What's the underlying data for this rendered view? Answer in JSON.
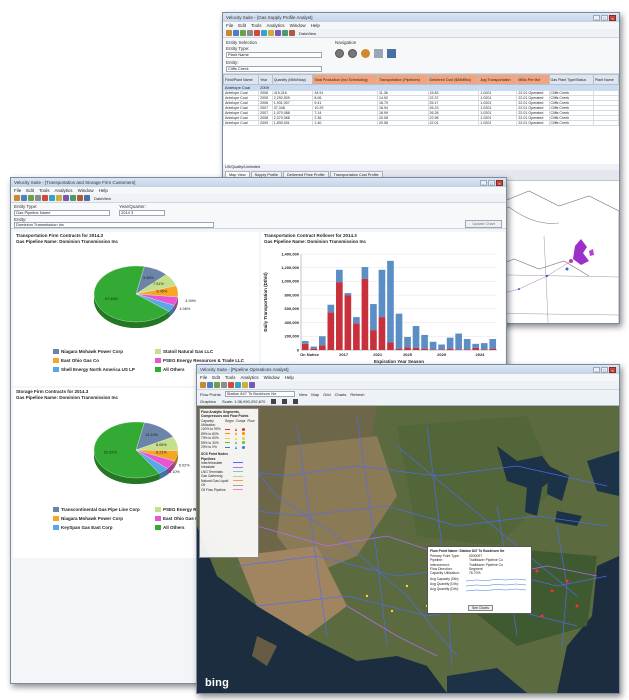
{
  "supply_window": {
    "title": "Velocity Suite - [Gas Supply Profile Analyst]",
    "menu": [
      "File",
      "Edit",
      "Tools",
      "Analytics",
      "Window",
      "Help"
    ],
    "toolbar_dataview": "DataView",
    "entity_selection_label": "Entity Selection",
    "entity_type_label": "Entity Type:",
    "entity_type_value": "Plant Name",
    "entity_label": "Entity:",
    "entity_value": "Cliffs Creek",
    "navigation_label": "Navigation",
    "table": {
      "columns": [
        "Field/Plant Name",
        "Year",
        "Quantity (MMcf/day)",
        "Total Production (incl Scheduling)",
        "Transportation (Pipelines)",
        "Delivered Cost ($/MMBtu)",
        "Avg Transportation",
        "MBtu Per Mcf",
        "Gas Plant Type/Status",
        "Plant Name"
      ],
      "highlight_columns": [
        3,
        4,
        5,
        6,
        7
      ],
      "rows": [
        [
          "Antelope Coal",
          "2009",
          "",
          "",
          "",
          "",
          "",
          "",
          "",
          ""
        ],
        [
          "Antelope Coal",
          "2006",
          "415,316",
          "34.91",
          "11.36",
          "15.83",
          "1.0201",
          "22.01 Operated",
          "Cliffs Creek",
          ""
        ],
        [
          "Antelope Coal",
          "2005",
          "2,292,909",
          "8.06",
          "14.92",
          "22.37",
          "1.0201",
          "22.01 Operated",
          "Cliffs Creek",
          ""
        ],
        [
          "Antelope Coal",
          "2006",
          "1,931,007",
          "9.41",
          "16.70",
          "25.17",
          "1.0201",
          "22.01 Operated",
          "Cliffs Creek",
          ""
        ],
        [
          "Antelope Coal",
          "2007",
          "37,348",
          "10.29",
          "16.94",
          "26.23",
          "1.0201",
          "22.01 Operated",
          "Cliffs Creek",
          ""
        ],
        [
          "Antelope Coal",
          "2007",
          "1,070,088",
          "7.14",
          "18.99",
          "26.28",
          "1.0201",
          "22.01 Operated",
          "Cliffs Creek",
          ""
        ],
        [
          "Antelope Coal",
          "2008",
          "2,370,068",
          "2.36",
          "20.08",
          "22.98",
          "1.0201",
          "22.01 Operated",
          "Cliffs Creek",
          ""
        ],
        [
          "Antelope Coal",
          "2009",
          "1,830,001",
          "1.40",
          "20.58",
          "22.01",
          "1.0201",
          "22.01 Operated",
          "Cliffs Creek",
          ""
        ]
      ]
    },
    "status_row": "US/Quality/Unlimited",
    "tabs": [
      "Map View",
      "Supply Profile",
      "Delivered Price Profile",
      "Transportation Cost Profile"
    ],
    "layers": {
      "tabs": [
        "Legend",
        "Layers"
      ],
      "items": [
        "Utility Clusters",
        "Supplying Mines"
      ],
      "subtitle": "Quantity (MMcf/day)",
      "plant_label": "CONSUMPTION POINT"
    }
  },
  "transport_window": {
    "title": "Velocity Suite - [Transportation and Storage Firm Customers]",
    "menu": [
      "File",
      "Edit",
      "Tools",
      "Analytics",
      "Window",
      "Help"
    ],
    "toolbar_dataview": "DataView",
    "entity_type_label": "Entity Type:",
    "entity_type_value": "Gas Pipeline Name",
    "year_quarter_label": "Year/Quarter:",
    "year_quarter_value": "2014 3",
    "entity_label": "Entity:",
    "entity_value": "Dominion Transmission Inc",
    "update_button": "Update Chart",
    "pie1": {
      "title1": "Transportation Firm Contracts for 2014.3",
      "title2": "Gas Pipeline Name: Dominion Transmission Inc",
      "slices": [
        {
          "label": "Niagara Mohawk Power Corp",
          "value": 9.58,
          "display": "9.58%",
          "color": "#6b84a8"
        },
        {
          "label": "Statoil Natural Gas LLC",
          "value": 7.51,
          "display": "7.51%",
          "color": "#c6df8c"
        },
        {
          "label": "East Ohio Gas Co",
          "value": 6.45,
          "display": "6.45%",
          "color": "#f5a623"
        },
        {
          "label": "PSEG Energy Resources & Trade LLC",
          "value": 4.94,
          "display": "4.94%",
          "color": "#e855d0"
        },
        {
          "label": "Shell Energy North America US LP",
          "value": 4.06,
          "display": "4.06%",
          "color": "#5aa7e8"
        },
        {
          "label": "All Others",
          "value": 67.46,
          "display": "67.46%",
          "color": "#33aa33"
        }
      ]
    },
    "pie2": {
      "title1": "Storage Firm Contracts for 2014.3",
      "title2": "Gas Pipeline Name: Dominion Transmission Inc",
      "slices": [
        {
          "label": "Transcontinental Gas Pipe Line Corp",
          "value": 14.1,
          "display": "14.10%",
          "color": "#6b84a8"
        },
        {
          "label": "PSEG Energy Resources",
          "value": 8.05,
          "display": "8.05%",
          "color": "#c6df8c"
        },
        {
          "label": "Niagara Mohawk Power Corp",
          "value": 6.21,
          "display": "6.21%",
          "color": "#f5a623"
        },
        {
          "label": "East Ohio Gas Co",
          "value": 5.02,
          "display": "5.02%",
          "color": "#e855d0"
        },
        {
          "label": "KeySpan Gas East Corp",
          "value": 4.1,
          "display": "4.10%",
          "color": "#5aa7e8"
        },
        {
          "label": "All Others",
          "value": 62.52,
          "display": "62.52%",
          "color": "#33aa33"
        }
      ]
    },
    "bar_title1": "Transportation Contract Rollover for 2014.3",
    "bar_title2": "Gas Pipeline Name: Dominion Transmission Inc"
  },
  "chart_data": {
    "type": "bar",
    "title": "Transportation Contract Rollover for 2014.3",
    "subtitle": "Gas Pipeline Name: Dominion Transmission Inc",
    "xlabel": "Expiration Year Season",
    "ylabel": "Daily Transportation (Dth/d)",
    "ylim": [
      0,
      1400000
    ],
    "yticks": [
      "1,400,000",
      "1,200,000",
      "1,000,000",
      "800,000",
      "600,000",
      "400,000",
      "200,000",
      "0"
    ],
    "xticks": [
      "On Notice",
      "2017",
      "2021",
      "2025",
      "2020",
      "2024"
    ],
    "series": [
      {
        "color": "#c8313c",
        "values": [
          90000,
          20000,
          70000,
          550000,
          990000,
          800000,
          390000,
          1040000,
          290000,
          480000,
          110000,
          20000,
          40000,
          30000,
          20000,
          10000,
          10000,
          20000,
          10000,
          10000,
          30000,
          10000,
          20000
        ]
      },
      {
        "color": "#5b8ec4",
        "values": [
          40000,
          30000,
          130000,
          110000,
          180000,
          30000,
          90000,
          170000,
          380000,
          690000,
          1190000,
          510000,
          150000,
          320000,
          200000,
          110000,
          70000,
          160000,
          230000,
          150000,
          60000,
          90000,
          140000
        ]
      }
    ]
  },
  "ops_window": {
    "title": "Velocity Suite - [Pipeline Operations Analyst]",
    "menu": [
      "File",
      "Edit",
      "Tools",
      "Analytics",
      "Window",
      "Help"
    ],
    "toolbar": [
      "Flow Points",
      "View",
      "Map",
      "Grid",
      "Charts",
      "Refresh"
    ],
    "flow_points_value": "Station 847 To Buckhorn Ne",
    "graphics_label": "Graphics",
    "scale_label": "Scale: 1:36,990,292,670",
    "legend_title": "Flow Analytic Segments, Compressors and Flow Points",
    "legend_cols": [
      "Capacity Utilization",
      "Segm",
      "Compr",
      "Flow"
    ],
    "legend_rows": [
      "100% to 90%",
      "89% to 80%",
      "79% to 60%",
      "59% to 30%",
      "29% to 0%"
    ],
    "legend_sections": [
      "SCS Point Nodes",
      "Pipelines"
    ],
    "pipelines": [
      "Inter/Intrastate",
      "Intrastate",
      "LNG Terminals",
      "Gas Gathering",
      "Natural Gas Liquid",
      "Oil",
      "Oil Flow Pipeline"
    ],
    "popup": {
      "title": "Flow Point Name: Station 847 To Buckhorn Ne",
      "fields": [
        [
          "Primary Point Type:",
          "0000097"
        ],
        [
          "Pipeline:",
          "Trailblazer Pipeline Co"
        ],
        [
          "Interconnect:",
          "Trailblazer Pipeline Co"
        ],
        [
          "Flow Direction:",
          "Segment"
        ],
        [
          "Capacity Utilization:",
          "76.70%"
        ]
      ],
      "charts": [
        "Avg Capacity (Dth):",
        "Avg Quantity (Dth):",
        "Avg Quantity (Dth):"
      ],
      "button": "See Charts"
    },
    "bing_logo": "bing"
  }
}
